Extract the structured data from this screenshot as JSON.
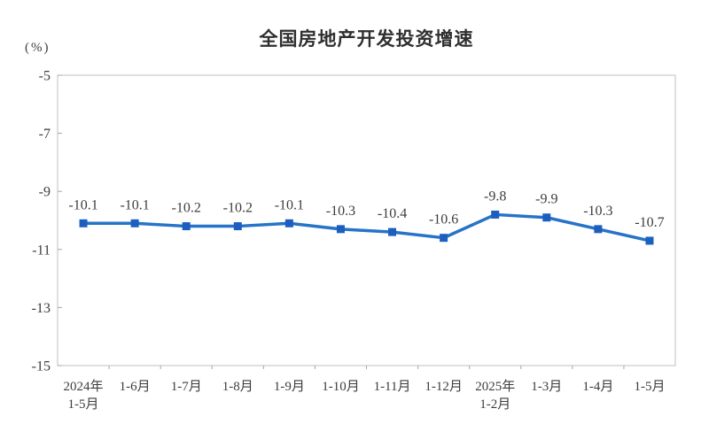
{
  "chart_data": {
    "type": "line",
    "title": "全国房地产开发投资增速",
    "unit_label": "(%)",
    "categories": [
      "2024年\n1-5月",
      "1-6月",
      "1-7月",
      "1-8月",
      "1-9月",
      "1-10月",
      "1-11月",
      "1-12月",
      "2025年\n1-2月",
      "1-3月",
      "1-4月",
      "1-5月"
    ],
    "values": [
      -10.1,
      -10.1,
      -10.2,
      -10.2,
      -10.1,
      -10.3,
      -10.4,
      -10.6,
      -9.8,
      -9.9,
      -10.3,
      -10.7
    ],
    "data_labels": [
      "-10.1",
      "-10.1",
      "-10.2",
      "-10.2",
      "-10.1",
      "-10.3",
      "-10.4",
      "-10.6",
      "-9.8",
      "-9.9",
      "-10.3",
      "-10.7"
    ],
    "yticks": [
      -5,
      -7,
      -9,
      -11,
      -13,
      -15
    ],
    "ylim": [
      -15,
      -5
    ],
    "grid": false,
    "legend": "none",
    "colors": {
      "line": "#2673C8",
      "marker": "#1C5FBE",
      "axis_border": "#bfbfbf",
      "tick": "#a6a6a6",
      "text": "#3d3d3d",
      "title_text": "#2f2f2f"
    }
  }
}
